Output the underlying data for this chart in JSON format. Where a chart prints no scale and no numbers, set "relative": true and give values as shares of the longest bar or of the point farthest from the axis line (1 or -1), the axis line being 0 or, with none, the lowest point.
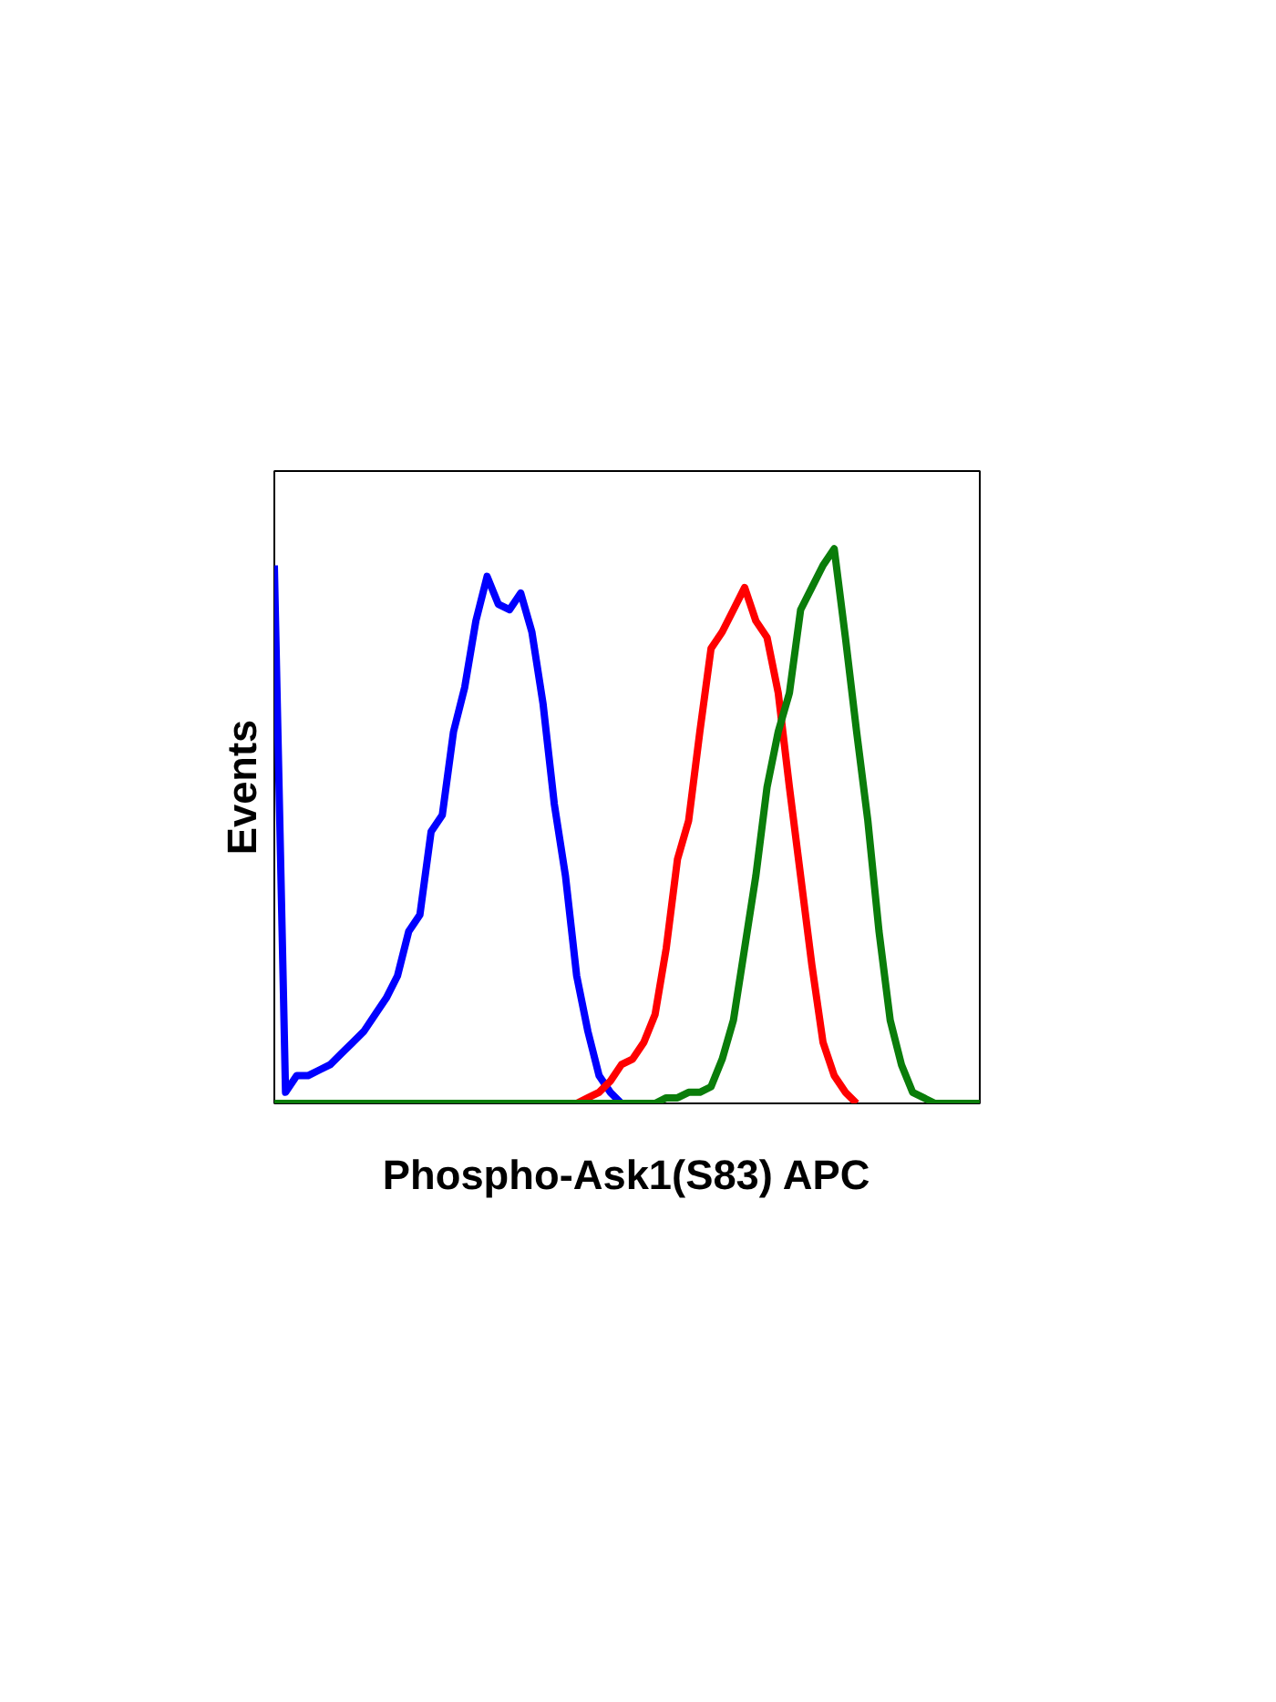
{
  "chart_data": {
    "type": "line",
    "relative": true,
    "xlabel": "Phospho-Ask1(S83) APC",
    "ylabel": "Events",
    "tick_labels": false,
    "grid": false,
    "marker": "none",
    "line_style": "solid",
    "categories": [
      null,
      null,
      null,
      null,
      null,
      null,
      null,
      null,
      null,
      null,
      null,
      null,
      null,
      null,
      null,
      null,
      null,
      null,
      null,
      null,
      null,
      null,
      null,
      null,
      null,
      null,
      null,
      null,
      null,
      null,
      null,
      null,
      null,
      null,
      null,
      null,
      null,
      null,
      null,
      null,
      null,
      null,
      null,
      null,
      null,
      null,
      null,
      null,
      null,
      null,
      null,
      null,
      null,
      null,
      null,
      null,
      null,
      null,
      null,
      null,
      null,
      null,
      null,
      null
    ],
    "series": [
      {
        "color": "#0000ff",
        "values": [
          0.97,
          0.02,
          0.05,
          0.05,
          0.06,
          0.07,
          0.09,
          0.11,
          0.13,
          0.16,
          0.19,
          0.23,
          0.31,
          0.34,
          0.49,
          0.52,
          0.67,
          0.75,
          0.87,
          0.95,
          0.9,
          0.89,
          0.92,
          0.85,
          0.72,
          0.54,
          0.41,
          0.23,
          0.13,
          0.05,
          0.02,
          0,
          null,
          null,
          null,
          null,
          null,
          null,
          null,
          null,
          null,
          null,
          null,
          null,
          null,
          null,
          null,
          null,
          null,
          null,
          null,
          null,
          null,
          null,
          null,
          null,
          null,
          null,
          null,
          null,
          null,
          null,
          null,
          null
        ]
      },
      {
        "color": "#ff0000",
        "values": [
          null,
          null,
          null,
          null,
          null,
          null,
          null,
          null,
          null,
          null,
          null,
          null,
          null,
          null,
          null,
          null,
          null,
          null,
          null,
          null,
          null,
          null,
          null,
          null,
          null,
          null,
          null,
          0,
          0.01,
          0.02,
          0.04,
          0.07,
          0.08,
          0.11,
          0.16,
          0.28,
          0.44,
          0.51,
          0.67,
          0.82,
          0.85,
          0.89,
          0.93,
          0.87,
          0.84,
          0.74,
          0.57,
          0.41,
          0.25,
          0.11,
          0.05,
          0.02,
          0,
          null,
          null,
          null,
          null,
          null,
          null,
          null,
          null,
          null,
          null,
          null
        ]
      },
      {
        "color": "#0a7d0a",
        "values": [
          0,
          0,
          0,
          0,
          0,
          0,
          0,
          0,
          0,
          0,
          0,
          0,
          0,
          0,
          0,
          0,
          0,
          0,
          0,
          0,
          0,
          0,
          0,
          0,
          0,
          0,
          0,
          0,
          0,
          0,
          0,
          0,
          0,
          0,
          0,
          0.01,
          0.01,
          0.02,
          0.02,
          0.03,
          0.08,
          0.15,
          0.28,
          0.41,
          0.57,
          0.67,
          0.74,
          0.89,
          0.93,
          0.97,
          1.0,
          0.84,
          0.67,
          0.51,
          0.31,
          0.15,
          0.07,
          0.02,
          0.01,
          0,
          0,
          0,
          0,
          0
        ]
      }
    ]
  }
}
